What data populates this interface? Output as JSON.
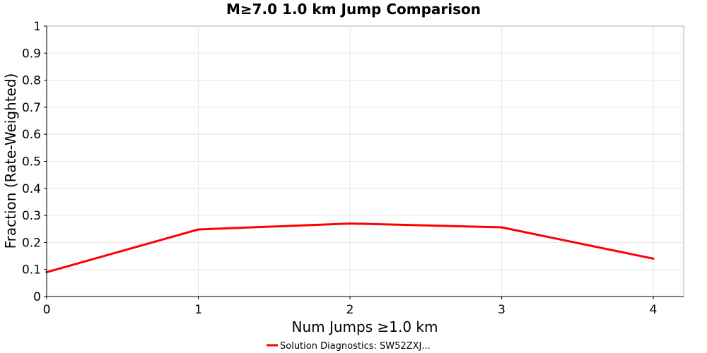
{
  "chart_data": {
    "type": "line",
    "title": "M≥7.0 1.0 km Jump Comparison",
    "xlabel": "Num Jumps ≥1.0 km",
    "ylabel": "Fraction (Rate-Weighted)",
    "xlim": [
      0,
      4.2
    ],
    "ylim": [
      0,
      1
    ],
    "x_ticks": [
      "0",
      "1",
      "2",
      "3",
      "4"
    ],
    "y_ticks": [
      "0",
      "0.1",
      "0.2",
      "0.3",
      "0.4",
      "0.5",
      "0.6",
      "0.7",
      "0.8",
      "0.9",
      "1"
    ],
    "grid": true,
    "legend_position": "bottom",
    "series": [
      {
        "name": "Solution Diagnostics: SW52ZXJ...",
        "color": "#ff0000",
        "x": [
          0,
          1,
          2,
          3,
          4
        ],
        "y": [
          0.09,
          0.248,
          0.27,
          0.256,
          0.14
        ]
      }
    ]
  }
}
